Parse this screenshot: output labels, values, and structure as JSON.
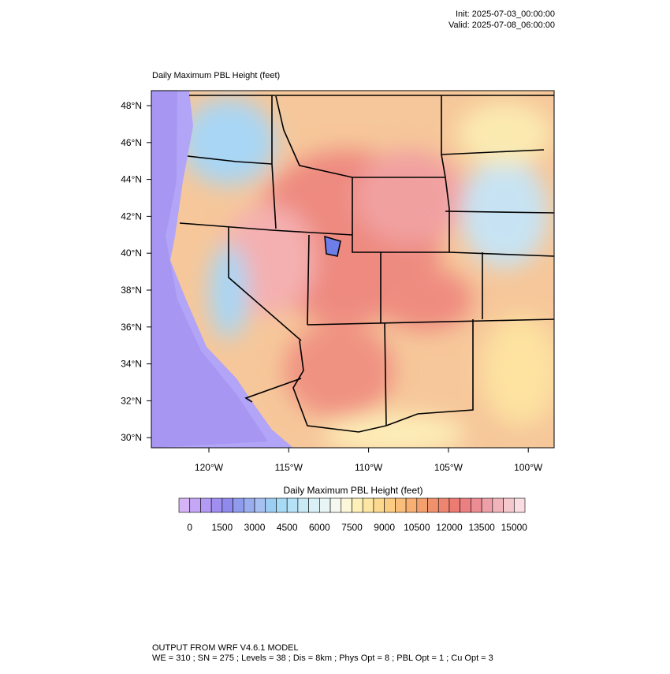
{
  "header": {
    "init": "Init: 2025-07-03_00:00:00",
    "valid": "Valid: 2025-07-08_06:00:00"
  },
  "map": {
    "title": "Daily Maximum PBL Height   (feet)",
    "lat_labels": [
      "48°N",
      "46°N",
      "44°N",
      "42°N",
      "40°N",
      "38°N",
      "36°N",
      "34°N",
      "32°N",
      "30°N"
    ],
    "lon_labels": [
      "120°W",
      "115°W",
      "110°W",
      "105°W",
      "100°W"
    ]
  },
  "colorbar": {
    "title": "Daily Maximum PBL Height  (feet)",
    "labels": [
      "0",
      "1500",
      "3000",
      "4500",
      "6000",
      "7500",
      "9000",
      "10500",
      "12000",
      "13500",
      "15000"
    ],
    "colors": [
      "#d6b3f7",
      "#c4a6f5",
      "#b39af3",
      "#a08ef0",
      "#8f8aec",
      "#8f9bec",
      "#9aaeef",
      "#a7c0f2",
      "#9ccdf3",
      "#a7daf5",
      "#b5e2f6",
      "#c8eaf7",
      "#d9f0f7",
      "#e8f5f5",
      "#f4f8ef",
      "#fbf7d8",
      "#fdf0b9",
      "#fde6a3",
      "#fcd98f",
      "#fbcc82",
      "#f9be79",
      "#f7af73",
      "#f4a06e",
      "#f1916c",
      "#ee8570",
      "#ec7b74",
      "#eb7f82",
      "#ec8d94",
      "#eea0a8",
      "#f1b4bb",
      "#f5c8cd",
      "#f9dde0"
    ]
  },
  "footer": {
    "line1": "OUTPUT FROM WRF V4.6.1 MODEL",
    "line2": "WE = 310 ; SN = 275 ; Levels = 38 ; Dis = 8km ; Phys Opt = 8 ; PBL Opt = 1 ; Cu Opt = 3"
  }
}
